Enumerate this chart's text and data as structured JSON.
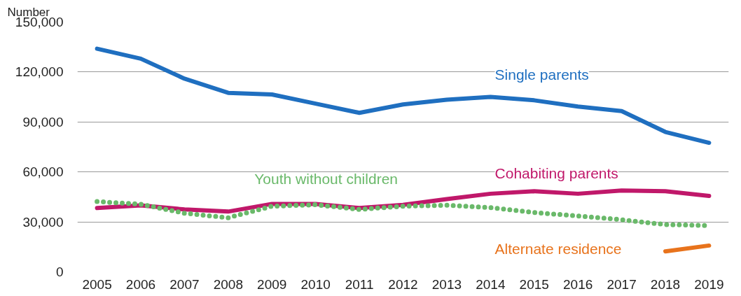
{
  "chart_data": {
    "type": "line",
    "ylabel": "Number",
    "x": [
      2005,
      2006,
      2007,
      2008,
      2009,
      2010,
      2011,
      2012,
      2013,
      2014,
      2015,
      2016,
      2017,
      2018,
      2019
    ],
    "xlim": [
      2004.55,
      2019.45
    ],
    "xticks": [
      2005,
      2006,
      2007,
      2008,
      2009,
      2010,
      2011,
      2012,
      2013,
      2014,
      2015,
      2016,
      2017,
      2018,
      2019
    ],
    "ylim": [
      0,
      150000
    ],
    "yticks": [
      {
        "value": 0,
        "label": "0"
      },
      {
        "value": 30000,
        "label": "30,000"
      },
      {
        "value": 60000,
        "label": "60,000"
      },
      {
        "value": 90000,
        "label": "90,000"
      },
      {
        "value": 120000,
        "label": "120,000"
      },
      {
        "value": 150000,
        "label": "150,000"
      }
    ],
    "grid": "y",
    "series": [
      {
        "name": "Single parents",
        "color": "#1f6fc0",
        "line_style": "solid",
        "values": [
          134000,
          128000,
          116000,
          107500,
          106500,
          101000,
          95500,
          100500,
          103400,
          105000,
          103000,
          99300,
          96500,
          84000,
          77500
        ]
      },
      {
        "name": "Cohabiting parents",
        "color": "#c0186a",
        "line_style": "solid",
        "values": [
          38300,
          39900,
          37500,
          36200,
          40800,
          40800,
          38300,
          40200,
          43700,
          46900,
          48400,
          46900,
          48800,
          48400,
          45600
        ]
      },
      {
        "name": "Youth without children",
        "color": "#6ab96a",
        "line_style": "dotted",
        "values": [
          42200,
          40600,
          35200,
          32500,
          39400,
          40300,
          37500,
          39400,
          40000,
          38600,
          35600,
          33600,
          31300,
          28400,
          27800
        ]
      },
      {
        "name": "Alternate residence",
        "color": "#e8731c",
        "line_style": "solid",
        "values": [
          null,
          null,
          null,
          null,
          null,
          null,
          null,
          null,
          null,
          null,
          null,
          null,
          null,
          12300,
          15800
        ]
      }
    ]
  }
}
